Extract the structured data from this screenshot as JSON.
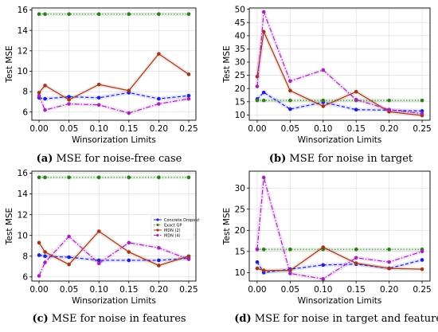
{
  "chart_data": [
    {
      "type": "line",
      "x": [
        0.0,
        0.01,
        0.05,
        0.1,
        0.15,
        0.2,
        0.25
      ],
      "xlabel": "Winsorization Limits",
      "ylabel": "Test MSE",
      "xlim": [
        -0.012,
        0.262
      ],
      "ylim": [
        5.2,
        16.2
      ],
      "yticks": [
        6,
        8,
        10,
        12,
        14,
        16
      ],
      "xticks": [
        "0.00",
        "0.05",
        "0.10",
        "0.15",
        "0.20",
        "0.25"
      ],
      "grid": true,
      "caption_letter": "(a)",
      "caption_text": " MSE for noise-free case",
      "series": [
        {
          "name": "Concrete Dropout",
          "color": "#1f1fd6",
          "style": "dashed",
          "values": [
            7.4,
            7.3,
            7.5,
            7.4,
            7.9,
            7.3,
            7.6
          ]
        },
        {
          "name": "Exact GP",
          "color": "#2e7d1f",
          "style": "dotted",
          "values": [
            15.6,
            15.6,
            15.6,
            15.6,
            15.6,
            15.6,
            15.6
          ]
        },
        {
          "name": "MDN (2)",
          "color": "#a0361a",
          "style": "solid",
          "values": [
            7.9,
            8.6,
            7.2,
            8.7,
            8.1,
            11.7,
            9.7
          ]
        },
        {
          "name": "MDN (4)",
          "color": "#a426b8",
          "style": "dashdot",
          "values": [
            7.6,
            6.2,
            6.8,
            6.7,
            5.9,
            6.8,
            7.3
          ]
        }
      ]
    },
    {
      "type": "line",
      "x": [
        0.0,
        0.01,
        0.05,
        0.1,
        0.15,
        0.2,
        0.25
      ],
      "xlabel": "Winsorization Limits",
      "ylabel": "Test MSE",
      "xlim": [
        -0.012,
        0.262
      ],
      "ylim": [
        8.0,
        50.5
      ],
      "yticks": [
        10,
        15,
        20,
        25,
        30,
        35,
        40,
        45,
        50
      ],
      "xticks": [
        "0.00",
        "0.05",
        "0.10",
        "0.15",
        "0.20",
        "0.25"
      ],
      "grid": true,
      "caption_letter": "(b)",
      "caption_text": " MSE for noise in target",
      "series": [
        {
          "name": "Concrete Dropout",
          "color": "#1f1fd6",
          "style": "dashed",
          "values": [
            16.0,
            18.5,
            12.2,
            14.8,
            12.0,
            11.8,
            11.5
          ]
        },
        {
          "name": "Exact GP",
          "color": "#2e7d1f",
          "style": "dotted",
          "values": [
            15.5,
            15.5,
            15.5,
            15.5,
            15.5,
            15.5,
            15.5
          ]
        },
        {
          "name": "MDN (2)",
          "color": "#a0361a",
          "style": "solid",
          "values": [
            24.5,
            41.5,
            19.2,
            13.3,
            18.8,
            11.2,
            9.8
          ]
        },
        {
          "name": "MDN (4)",
          "color": "#a426b8",
          "style": "dashdot",
          "values": [
            20.8,
            49.0,
            22.8,
            27.0,
            15.8,
            12.0,
            10.5
          ]
        }
      ]
    },
    {
      "type": "line",
      "x": [
        0.0,
        0.01,
        0.05,
        0.1,
        0.15,
        0.2,
        0.25
      ],
      "xlabel": "Winsorization Limits",
      "ylabel": "Test MSE",
      "xlim": [
        -0.012,
        0.262
      ],
      "ylim": [
        5.6,
        16.2
      ],
      "yticks": [
        6,
        8,
        10,
        12,
        14,
        16
      ],
      "xticks": [
        "0.00",
        "0.05",
        "0.10",
        "0.15",
        "0.20",
        "0.25"
      ],
      "grid": true,
      "legend": "inside, center-right",
      "caption_letter": "(c)",
      "caption_text": " MSE for noise in features",
      "series": [
        {
          "name": "Concrete Dropout",
          "color": "#1f1fd6",
          "style": "dashed",
          "values": [
            8.1,
            8.0,
            7.9,
            7.6,
            7.6,
            7.6,
            7.8
          ]
        },
        {
          "name": "Exact GP",
          "color": "#2e7d1f",
          "style": "dotted",
          "values": [
            15.6,
            15.6,
            15.6,
            15.6,
            15.6,
            15.6,
            15.6
          ]
        },
        {
          "name": "MDN (2)",
          "color": "#a0361a",
          "style": "solid",
          "values": [
            9.3,
            8.4,
            7.2,
            10.4,
            8.4,
            7.1,
            8.0
          ]
        },
        {
          "name": "MDN (4)",
          "color": "#a426b8",
          "style": "dashdot",
          "values": [
            6.1,
            7.4,
            9.9,
            7.3,
            9.3,
            8.8,
            7.7
          ]
        }
      ]
    },
    {
      "type": "line",
      "x": [
        0.0,
        0.01,
        0.05,
        0.1,
        0.15,
        0.2,
        0.25
      ],
      "xlabel": "Winsorization Limits",
      "ylabel": "Test MSE",
      "xlim": [
        -0.012,
        0.262
      ],
      "ylim": [
        8.0,
        34.0
      ],
      "yticks": [
        10,
        15,
        20,
        25,
        30
      ],
      "xticks": [
        "0.00",
        "0.05",
        "0.10",
        "0.15",
        "0.20",
        "0.25"
      ],
      "grid": true,
      "caption_letter": "(d)",
      "caption_text": " MSE for noise in target and features",
      "series": [
        {
          "name": "Concrete Dropout",
          "color": "#1f1fd6",
          "style": "dashed",
          "values": [
            12.5,
            10.0,
            10.8,
            11.8,
            12.0,
            11.0,
            13.0
          ]
        },
        {
          "name": "Exact GP",
          "color": "#2e7d1f",
          "style": "dotted",
          "values": [
            15.5,
            15.5,
            15.5,
            15.5,
            15.5,
            15.5,
            15.5
          ]
        },
        {
          "name": "MDN (2)",
          "color": "#a0361a",
          "style": "solid",
          "values": [
            11.0,
            10.5,
            10.5,
            16.0,
            12.2,
            11.0,
            10.8
          ]
        },
        {
          "name": "MDN (4)",
          "color": "#a426b8",
          "style": "dashdot",
          "values": [
            15.5,
            32.5,
            9.8,
            8.5,
            13.5,
            12.5,
            15.0
          ]
        }
      ]
    }
  ]
}
